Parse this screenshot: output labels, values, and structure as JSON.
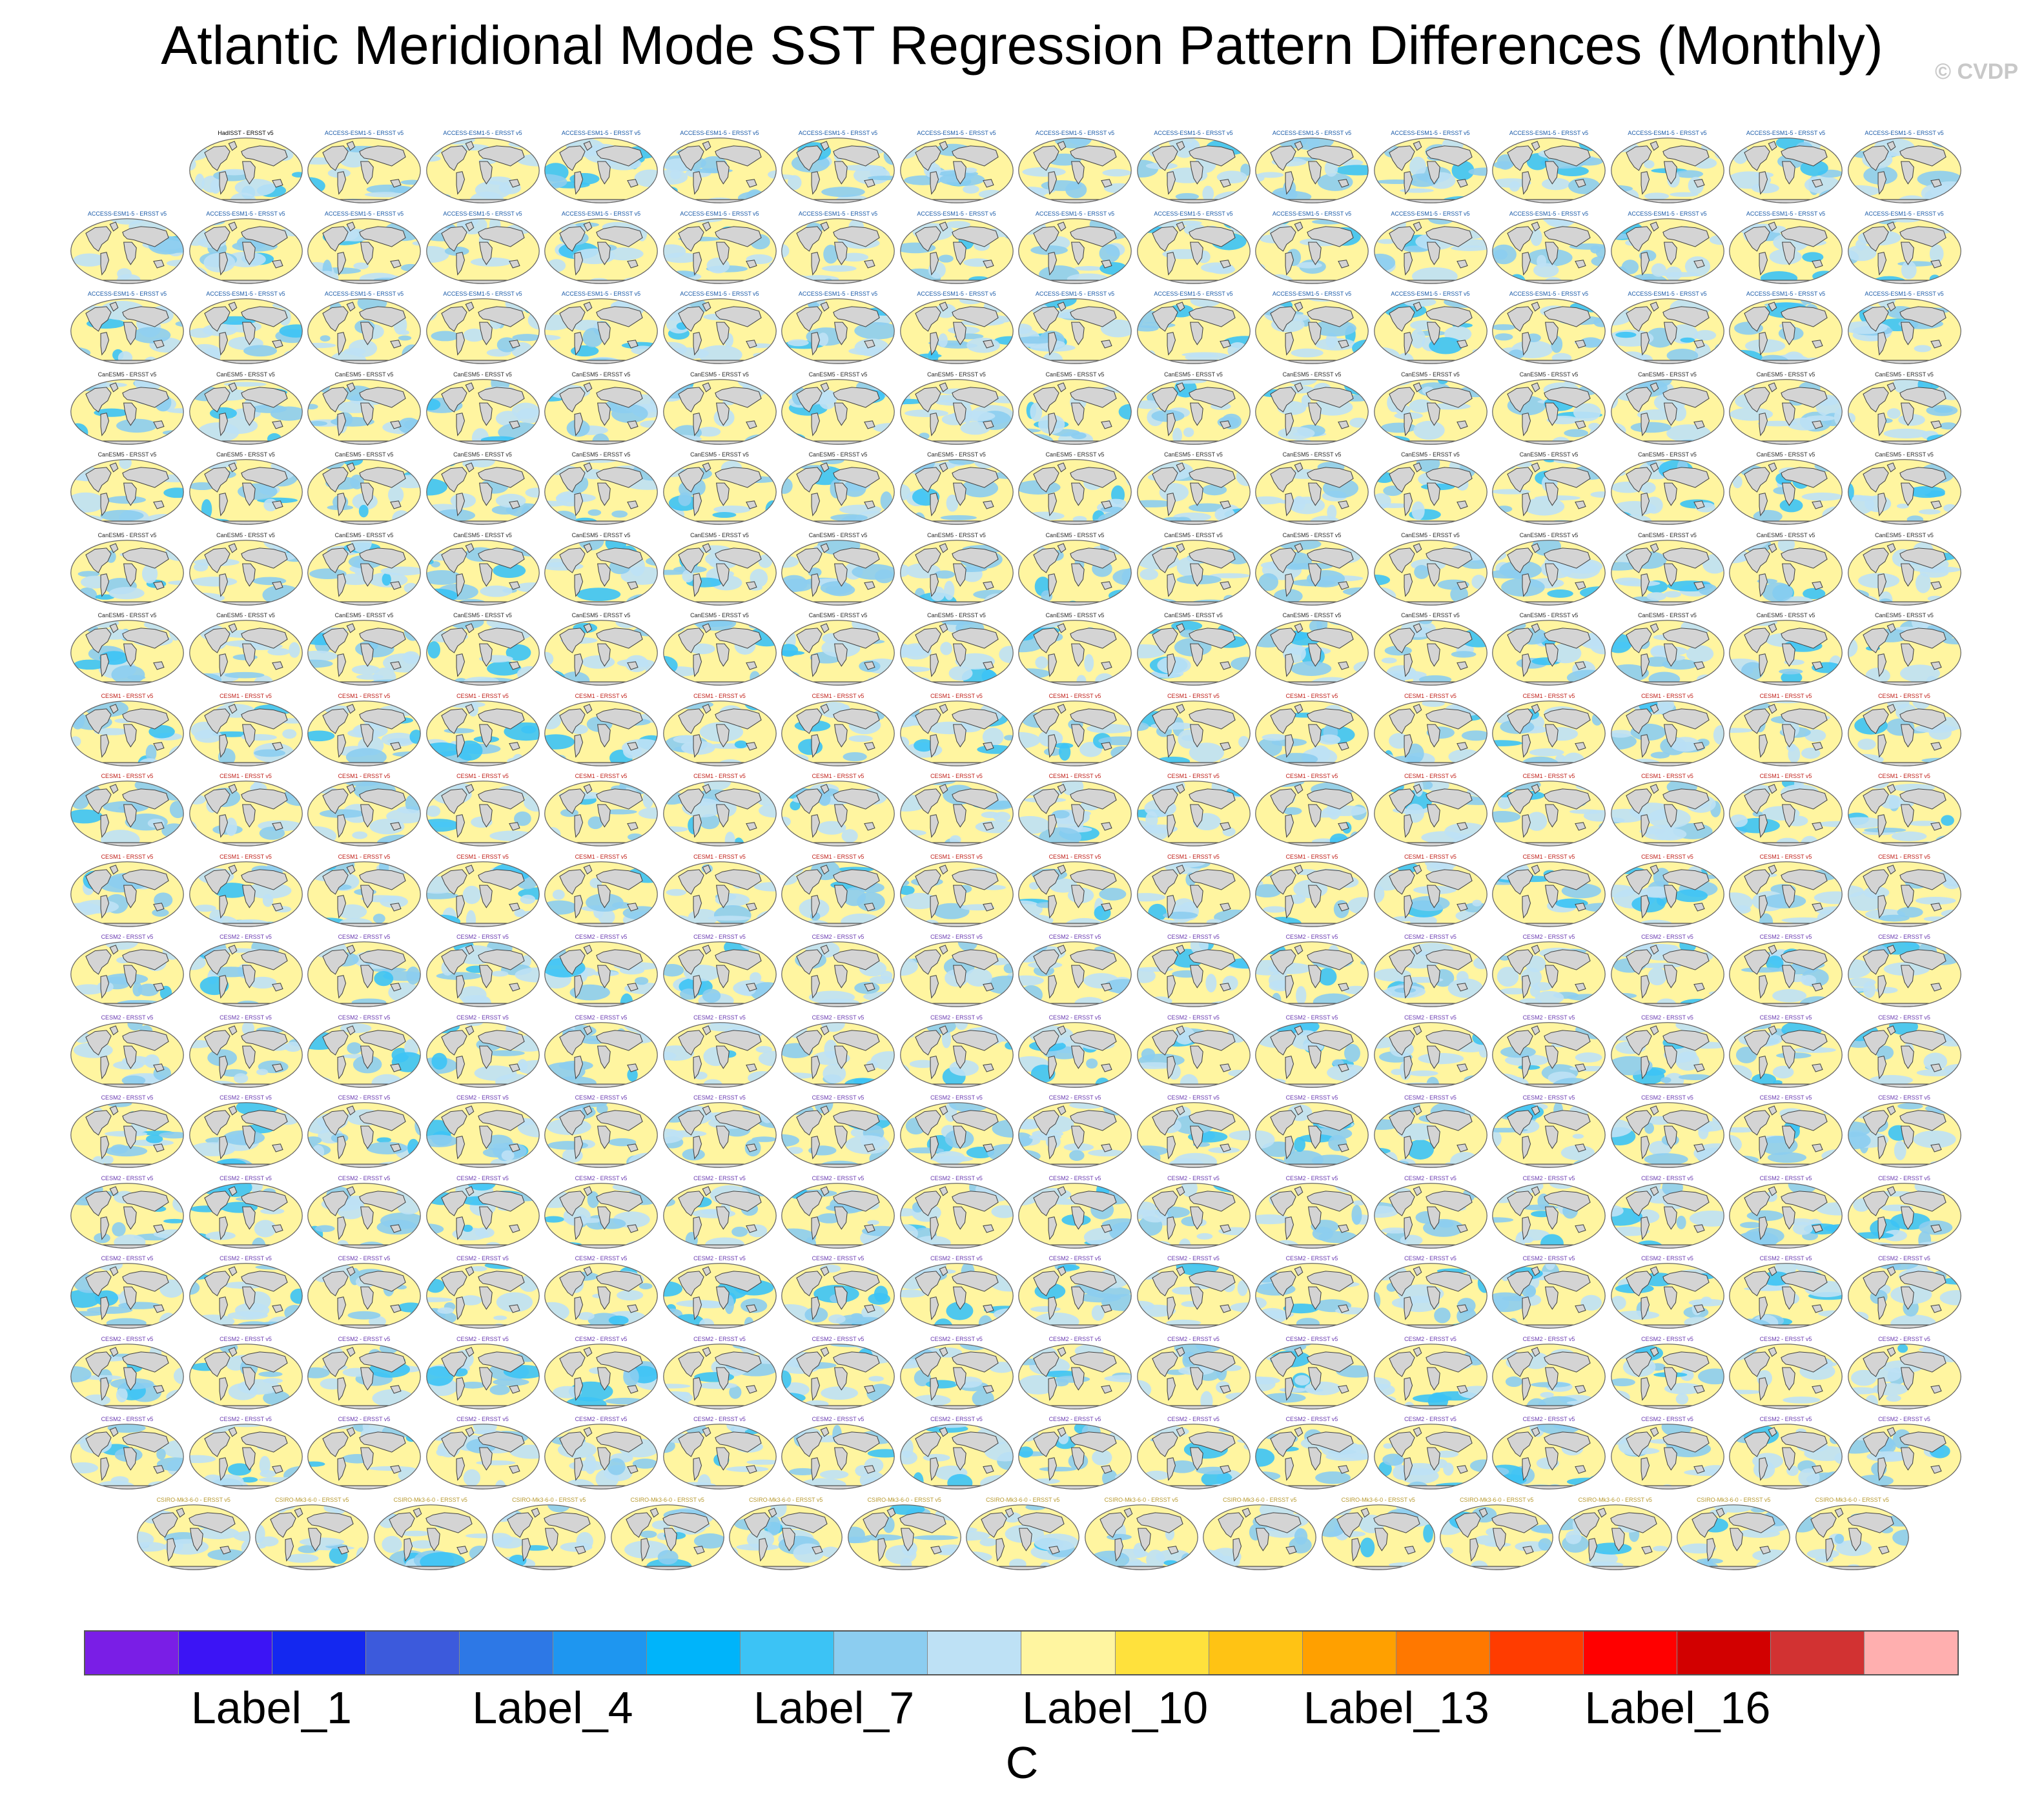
{
  "title": "Atlantic Meridional Mode SST Regression Pattern Differences (Monthly)",
  "watermark": "© CVDP",
  "colorbar": {
    "colors": [
      "#7a1ee6",
      "#3c14f5",
      "#1428f0",
      "#3c5adc",
      "#2d78e6",
      "#1e96f0",
      "#00b4fa",
      "#3cc3f5",
      "#8ccdf0",
      "#bee1f5",
      "#fff5a0",
      "#ffe13c",
      "#ffc314",
      "#ffa000",
      "#ff7800",
      "#ff3c00",
      "#ff0000",
      "#d20000",
      "#d23232",
      "#ffafaf"
    ],
    "labels": [
      {
        "text": "Label_1",
        "boundary": 2
      },
      {
        "text": "Label_4",
        "boundary": 5
      },
      {
        "text": "Label_7",
        "boundary": 8
      },
      {
        "text": "Label_10",
        "boundary": 11
      },
      {
        "text": "Label_13",
        "boundary": 14
      },
      {
        "text": "Label_16",
        "boundary": 17
      }
    ],
    "units": "C"
  },
  "panels": {
    "rows": [
      {
        "count": 15,
        "offset": 1
      },
      {
        "count": 16
      },
      {
        "count": 16
      },
      {
        "count": 16
      },
      {
        "count": 16
      },
      {
        "count": 16
      },
      {
        "count": 16
      },
      {
        "count": 16
      },
      {
        "count": 16
      },
      {
        "count": 16
      },
      {
        "count": 16
      },
      {
        "count": 16
      },
      {
        "count": 16
      },
      {
        "count": 16
      },
      {
        "count": 16
      },
      {
        "count": 16
      },
      {
        "count": 16
      },
      {
        "count": 15,
        "centered": true
      }
    ],
    "first_panel_title": "HadISST - ERSST v5",
    "title_groups": [
      {
        "row_from": 0,
        "row_to": 2,
        "prefix": "ACCESS-ESM1-5",
        "suffix": " - ERSST v5",
        "color": "#1a5aa8"
      },
      {
        "row_from": 3,
        "row_to": 6,
        "prefix": "CanESM5",
        "suffix": " - ERSST v5",
        "color": "#2a2a2a"
      },
      {
        "row_from": 7,
        "row_to": 9,
        "prefix": "CESM1",
        "suffix": " - ERSST v5",
        "color": "#c0201a"
      },
      {
        "row_from": 10,
        "row_to": 16,
        "prefix": "CESM2",
        "suffix": " - ERSST v5",
        "color": "#6a3ab0"
      },
      {
        "row_from": 17,
        "row_to": 17,
        "prefix": "CSIRO-Mk3-6-0",
        "suffix": " - ERSST v5",
        "color": "#b89a30"
      }
    ],
    "map_colors": {
      "ocean_base": "#fff5a0",
      "ocean_cool": "#bee1f5",
      "ocean_mid": "#8ccdf0",
      "ocean_strong": "#3cc3f5",
      "land": "#d4d4d4",
      "coast": "#444444"
    }
  }
}
